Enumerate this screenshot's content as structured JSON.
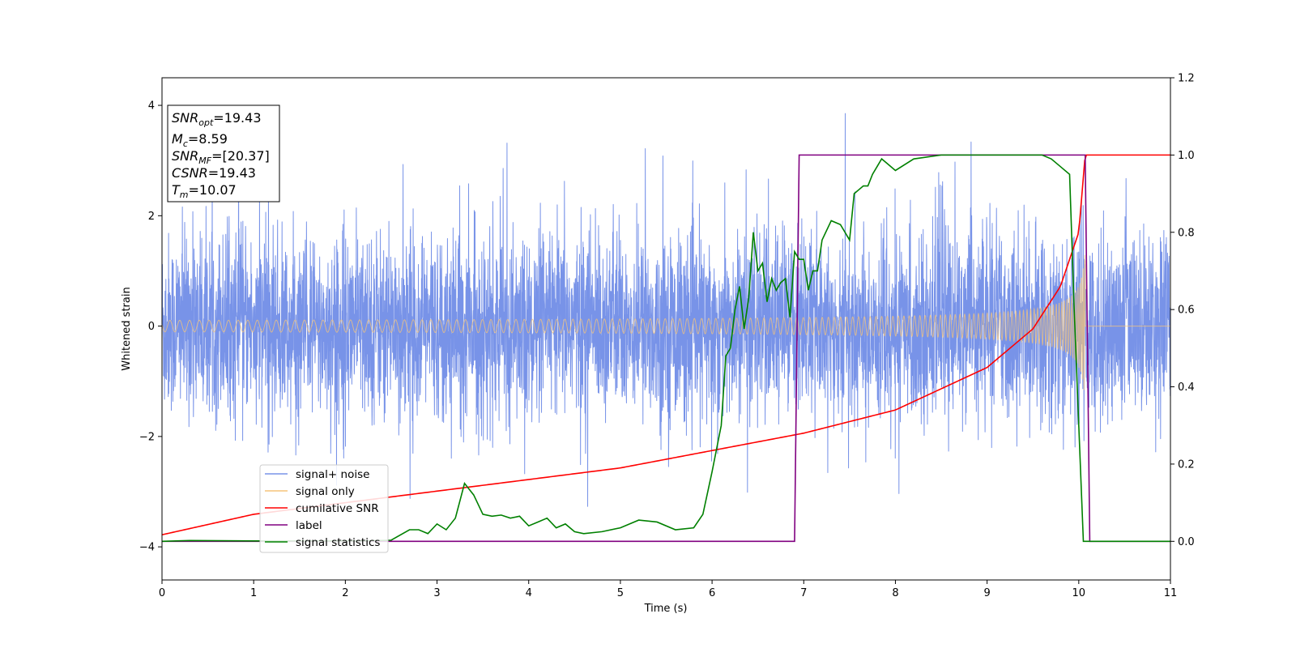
{
  "chart_data": {
    "type": "line",
    "xlabel": "Time (s)",
    "ylabel": "Whitened strain",
    "xlim": [
      0,
      11
    ],
    "ylim_left": [
      -4.6,
      4.5
    ],
    "ylim_right": [
      -0.1,
      1.2
    ],
    "x_ticks": [
      "0",
      "1",
      "2",
      "3",
      "4",
      "5",
      "6",
      "7",
      "8",
      "9",
      "10",
      "11"
    ],
    "y_ticks_left": [
      "−4",
      "−2",
      "0",
      "2",
      "4"
    ],
    "y_ticks_right": [
      "0.0",
      "0.2",
      "0.4",
      "0.6",
      "0.8",
      "1.0",
      "1.2"
    ],
    "annotation": {
      "snr_opt": {
        "base": "SNR",
        "sub": "opt",
        "value": "=19.43"
      },
      "mc": {
        "base": "M",
        "sub": "c",
        "value": "=8.59"
      },
      "snr_mf": {
        "base": "SNR",
        "sub": "MF",
        "value": "=[20.37]"
      },
      "csnr": {
        "base": "CSNR",
        "sub": "",
        "value": "=19.43"
      },
      "tm": {
        "base": "T",
        "sub": "m",
        "value": "=10.07"
      }
    },
    "legend": {
      "placement": "lower-left",
      "entries": [
        {
          "label": "signal+ noise",
          "color": "#7893e8"
        },
        {
          "label": "signal only",
          "color": "#f5c47a"
        },
        {
          "label": "cumilative SNR",
          "color": "#ff0000"
        },
        {
          "label": "label",
          "color": "#800080"
        },
        {
          "label": "signal statistics",
          "color": "#008000"
        }
      ]
    },
    "series": [
      {
        "name": "signal+ noise",
        "axis": "left",
        "color": "#7893e8",
        "approx_envelope": {
          "x": [
            0,
            11
          ],
          "typical_range": [
            -2.0,
            2.4
          ],
          "peak_max": 4.1,
          "peak_min": -4.15
        }
      },
      {
        "name": "signal only",
        "axis": "left",
        "color": "#f5c47a",
        "chirp": {
          "start": 0,
          "end": 10.07,
          "amp_start": 0.05,
          "amp_end": 1.4
        }
      },
      {
        "name": "cumilative SNR",
        "axis": "right",
        "color": "#ff0000",
        "x": [
          0,
          1,
          2,
          3,
          4,
          5,
          6,
          7,
          8,
          9,
          9.5,
          9.8,
          10.0,
          10.07,
          11
        ],
        "y": [
          0.017,
          0.07,
          0.1,
          0.13,
          0.16,
          0.19,
          0.235,
          0.28,
          0.34,
          0.45,
          0.55,
          0.66,
          0.8,
          1.0,
          1.0
        ]
      },
      {
        "name": "label",
        "axis": "right",
        "color": "#800080",
        "x": [
          0,
          6.9,
          6.95,
          10.07,
          10.12,
          11
        ],
        "y": [
          0,
          0,
          1,
          1,
          0,
          0
        ]
      },
      {
        "name": "signal statistics",
        "axis": "right",
        "color": "#008000",
        "x": [
          0,
          0.3,
          1,
          2.2,
          2.5,
          2.7,
          2.8,
          2.9,
          3.0,
          3.1,
          3.2,
          3.3,
          3.4,
          3.5,
          3.6,
          3.7,
          3.8,
          3.9,
          4.0,
          4.1,
          4.2,
          4.3,
          4.4,
          4.5,
          4.6,
          4.8,
          5.0,
          5.2,
          5.4,
          5.6,
          5.8,
          5.9,
          6.0,
          6.1,
          6.15,
          6.2,
          6.25,
          6.3,
          6.35,
          6.4,
          6.45,
          6.5,
          6.55,
          6.6,
          6.65,
          6.7,
          6.75,
          6.8,
          6.85,
          6.9,
          6.95,
          7.0,
          7.05,
          7.1,
          7.15,
          7.2,
          7.3,
          7.4,
          7.5,
          7.55,
          7.6,
          7.65,
          7.7,
          7.75,
          7.8,
          7.85,
          7.9,
          8.0,
          8.2,
          8.5,
          8.8,
          9.0,
          9.3,
          9.6,
          9.7,
          9.8,
          9.9,
          9.95,
          10.0,
          10.05,
          10.1,
          11
        ],
        "y": [
          0,
          0.002,
          0.001,
          0.001,
          0.003,
          0.03,
          0.03,
          0.02,
          0.045,
          0.03,
          0.06,
          0.15,
          0.12,
          0.07,
          0.065,
          0.068,
          0.06,
          0.065,
          0.04,
          0.05,
          0.06,
          0.035,
          0.045,
          0.025,
          0.02,
          0.025,
          0.035,
          0.055,
          0.05,
          0.03,
          0.035,
          0.07,
          0.18,
          0.3,
          0.48,
          0.5,
          0.6,
          0.66,
          0.55,
          0.63,
          0.8,
          0.7,
          0.72,
          0.62,
          0.68,
          0.65,
          0.67,
          0.68,
          0.58,
          0.75,
          0.73,
          0.73,
          0.65,
          0.7,
          0.7,
          0.78,
          0.83,
          0.82,
          0.78,
          0.9,
          0.91,
          0.92,
          0.92,
          0.95,
          0.97,
          0.99,
          0.98,
          0.96,
          0.99,
          1.0,
          1.0,
          1.0,
          1.0,
          1.0,
          0.99,
          0.97,
          0.95,
          0.6,
          0.3,
          0.0,
          0.0,
          0.0
        ]
      }
    ]
  }
}
